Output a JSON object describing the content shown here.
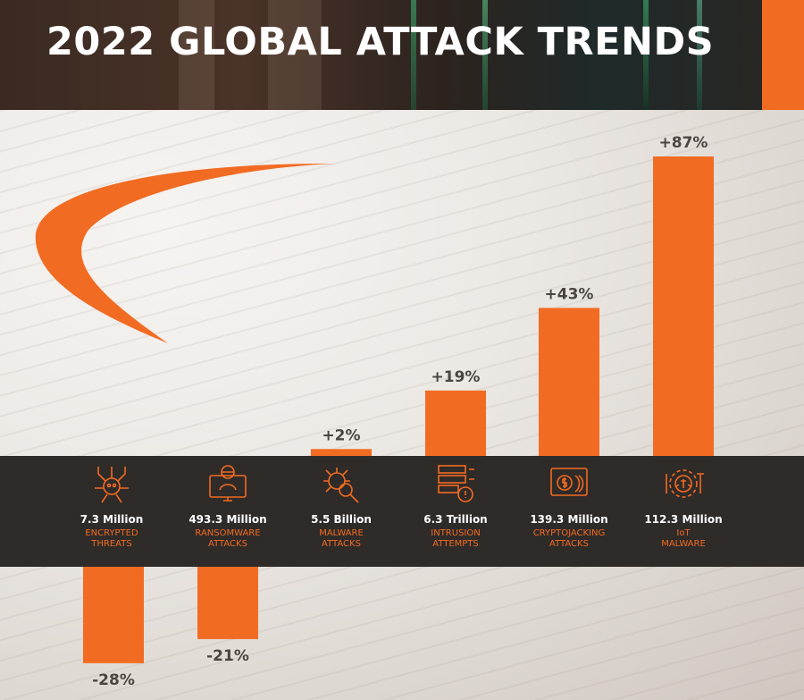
{
  "title": "2022 GLOBAL ATTACK TRENDS",
  "colors": {
    "accent": "#f26b22",
    "band": "#2f2b29",
    "header": "#2c231f"
  },
  "chart_data": {
    "type": "bar",
    "categories": [
      "ENCRYPTED THREATS",
      "RANSOMWARE ATTACKS",
      "MALWARE ATTACKS",
      "INTRUSION ATTEMPTS",
      "CRYPTOJACKING ATTACKS",
      "IoT MALWARE"
    ],
    "values": [
      -28,
      -21,
      2,
      19,
      43,
      87
    ],
    "value_labels": [
      "-28%",
      "-21%",
      "+2%",
      "+19%",
      "+43%",
      "+87%"
    ],
    "unit": "%"
  },
  "items": [
    {
      "amount": "7.3 Million",
      "label_line1": "ENCRYPTED",
      "label_line2": "THREATS",
      "icon": "skull-chip-icon"
    },
    {
      "amount": "493.3 Million",
      "label_line1": "RANSOMWARE",
      "label_line2": "ATTACKS",
      "icon": "hacker-monitor-icon"
    },
    {
      "amount": "5.5 Billion",
      "label_line1": "MALWARE",
      "label_line2": "ATTACKS",
      "icon": "bug-magnifier-icon"
    },
    {
      "amount": "6.3 Trillion",
      "label_line1": "INTRUSION",
      "label_line2": "ATTEMPTS",
      "icon": "server-alert-icon"
    },
    {
      "amount": "139.3 Million",
      "label_line1": "CRYPTOJACKING",
      "label_line2": "ATTACKS",
      "icon": "coin-hand-icon"
    },
    {
      "amount": "112.3 Million",
      "label_line1": "IoT",
      "label_line2": "MALWARE",
      "icon": "iot-bug-icon"
    }
  ]
}
